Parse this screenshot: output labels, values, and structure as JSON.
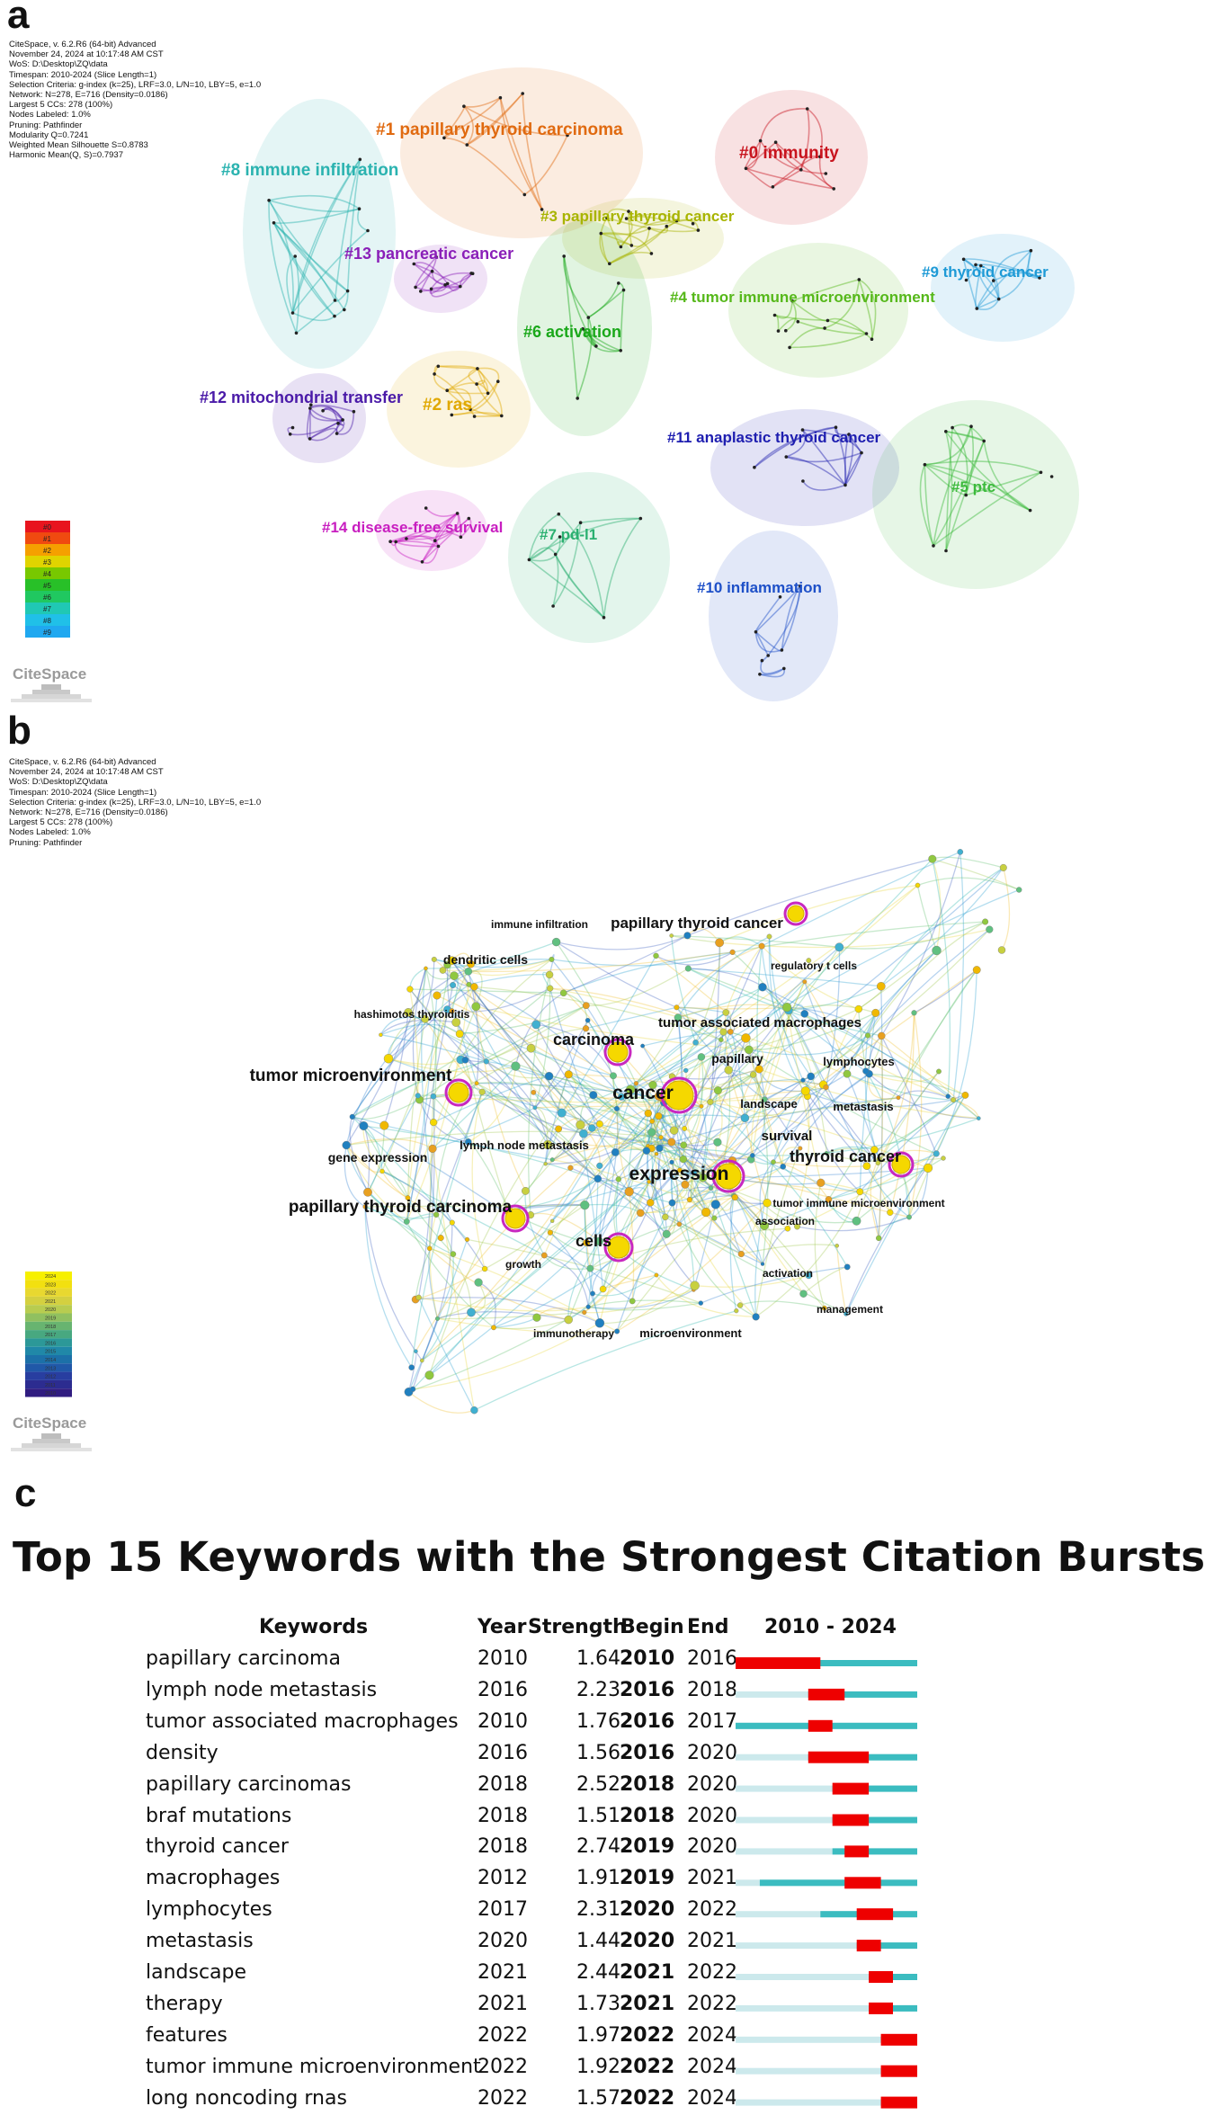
{
  "panel_a": {
    "letter": "a",
    "meta": [
      "CiteSpace, v. 6.2.R6 (64-bit) Advanced",
      "November 24, 2024 at 10:17:48 AM CST",
      "WoS: D:\\Desktop\\ZQ\\data",
      "Timespan: 2010-2024 (Slice Length=1)",
      "Selection Criteria: g-index (k=25), LRF=3.0, L/N=10, LBY=5, e=1.0",
      "Network: N=278, E=716 (Density=0.0186)",
      "Largest 5 CCs: 278 (100%)",
      "Nodes Labeled: 1.0%",
      "Pruning: Pathfinder",
      "Modularity Q=0.7241",
      "Weighted Mean Silhouette S=0.8783",
      "Harmonic Mean(Q, S)=0.7937"
    ],
    "clusters": [
      {
        "label": "#1 papillary thyroid carcinoma",
        "color": "#e06a10"
      },
      {
        "label": "#0 immunity",
        "color": "#c8141e"
      },
      {
        "label": "#8 immune infiltration",
        "color": "#2bb3b0"
      },
      {
        "label": "#3 papillary thyroid cancer",
        "color": "#a8b400"
      },
      {
        "label": "#13 pancreatic cancer",
        "color": "#8a1fb8"
      },
      {
        "label": "#4 tumor immune microenvironment",
        "color": "#56b81a"
      },
      {
        "label": "#9 thyroid cancer",
        "color": "#1e9ad6"
      },
      {
        "label": "#6 activation",
        "color": "#1aa81a"
      },
      {
        "label": "#12 mitochondrial transfer",
        "color": "#4a1aa8"
      },
      {
        "label": "#2 ras",
        "color": "#e0a800"
      },
      {
        "label": "#11 anaplastic thyroid cancer",
        "color": "#1e1eb0"
      },
      {
        "label": "#5 ptc",
        "color": "#3cba3c"
      },
      {
        "label": "#14 disease-free survival",
        "color": "#c81ec0"
      },
      {
        "label": "#7 pd-l1",
        "color": "#2ab070"
      },
      {
        "label": "#10 inflammation",
        "color": "#1e50c8"
      }
    ],
    "legend": [
      "#0",
      "#1",
      "#2",
      "#3",
      "#4",
      "#5",
      "#6",
      "#7",
      "#8",
      "#9"
    ],
    "logo": "CiteSpace"
  },
  "panel_b": {
    "letter": "b",
    "meta": [
      "CiteSpace, v. 6.2.R6 (64-bit) Advanced",
      "November 24, 2024 at 10:17:48 AM CST",
      "WoS: D:\\Desktop\\ZQ\\data",
      "Timespan: 2010-2024 (Slice Length=1)",
      "Selection Criteria: g-index (k=25), LRF=3.0, L/N=10, LBY=5, e=1.0",
      "Network: N=278, E=716 (Density=0.0186)",
      "Largest 5 CCs: 278 (100%)",
      "Nodes Labeled: 1.0%",
      "Pruning: Pathfinder"
    ],
    "keywords": [
      "immune infiltration",
      "papillary thyroid cancer",
      "dendritic cells",
      "regulatory t cells",
      "hashimotos thyroiditis",
      "tumor associated macrophages",
      "carcinoma",
      "papillary",
      "lymphocytes",
      "tumor microenvironment",
      "cancer",
      "landscape",
      "metastasis",
      "lymph node metastasis",
      "survival",
      "gene expression",
      "expression",
      "thyroid cancer",
      "papillary thyroid carcinoma",
      "tumor immune microenvironment",
      "association",
      "cells",
      "growth",
      "activation",
      "management",
      "immunotherapy",
      "microenvironment"
    ],
    "legend_years": [
      "2024",
      "2023",
      "2022",
      "2021",
      "2020",
      "2019",
      "2018",
      "2017",
      "2016",
      "2015",
      "2014",
      "2013",
      "2012",
      "2011",
      "2010"
    ],
    "logo": "CiteSpace"
  },
  "panel_c": {
    "letter": "c",
    "title": "Top 15 Keywords with the Strongest Citation Bursts",
    "headers": {
      "keywords": "Keywords",
      "year": "Year",
      "strength": "Strength",
      "begin": "Begin",
      "end": "End",
      "range": "2010 - 2024"
    },
    "rows": [
      {
        "keyword": "papillary carcinoma",
        "year": "2010",
        "strength": "1.64",
        "begin": "2010",
        "end": "2016"
      },
      {
        "keyword": "lymph node metastasis",
        "year": "2016",
        "strength": "2.23",
        "begin": "2016",
        "end": "2018"
      },
      {
        "keyword": "tumor associated macrophages",
        "year": "2010",
        "strength": "1.76",
        "begin": "2016",
        "end": "2017"
      },
      {
        "keyword": "density",
        "year": "2016",
        "strength": "1.56",
        "begin": "2016",
        "end": "2020"
      },
      {
        "keyword": "papillary carcinomas",
        "year": "2018",
        "strength": "2.52",
        "begin": "2018",
        "end": "2020"
      },
      {
        "keyword": "braf mutations",
        "year": "2018",
        "strength": "1.51",
        "begin": "2018",
        "end": "2020"
      },
      {
        "keyword": "thyroid cancer",
        "year": "2018",
        "strength": "2.74",
        "begin": "2019",
        "end": "2020"
      },
      {
        "keyword": "macrophages",
        "year": "2012",
        "strength": "1.91",
        "begin": "2019",
        "end": "2021"
      },
      {
        "keyword": "lymphocytes",
        "year": "2017",
        "strength": "2.31",
        "begin": "2020",
        "end": "2022"
      },
      {
        "keyword": "metastasis",
        "year": "2020",
        "strength": "1.44",
        "begin": "2020",
        "end": "2021"
      },
      {
        "keyword": "landscape",
        "year": "2021",
        "strength": "2.44",
        "begin": "2021",
        "end": "2022"
      },
      {
        "keyword": "therapy",
        "year": "2021",
        "strength": "1.73",
        "begin": "2021",
        "end": "2022"
      },
      {
        "keyword": "features",
        "year": "2022",
        "strength": "1.97",
        "begin": "2022",
        "end": "2024"
      },
      {
        "keyword": "tumor immune microenvironment",
        "year": "2022",
        "strength": "1.92",
        "begin": "2022",
        "end": "2024"
      },
      {
        "keyword": "long noncoding rnas",
        "year": "2022",
        "strength": "1.57",
        "begin": "2022",
        "end": "2024"
      }
    ],
    "span_start": 2010,
    "span_end": 2024,
    "colors": {
      "burst": "#ee0000",
      "active": "#3bbcc0",
      "inactive": "#cce9ec"
    }
  }
}
